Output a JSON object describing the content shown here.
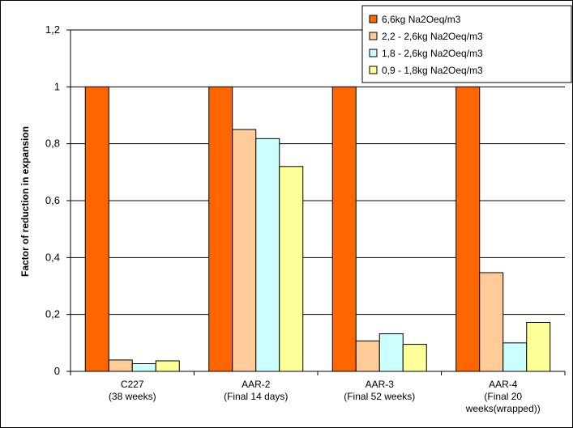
{
  "chart_data": {
    "type": "bar",
    "ylabel": "Factor of reduction in expansion",
    "xlabel": "",
    "ylim": [
      0,
      1.2
    ],
    "yticks": [
      "0",
      "0,2",
      "0,4",
      "0,6",
      "0,8",
      "1",
      "1,2"
    ],
    "ytick_values": [
      0,
      0.2,
      0.4,
      0.6,
      0.8,
      1.0,
      1.2
    ],
    "grid": "horizontal",
    "legend_position": "top-right",
    "categories": [
      [
        "C227",
        "(38 weeks)"
      ],
      [
        "AAR-2",
        "(Final 14 days)"
      ],
      [
        "AAR-3",
        "(Final 52 weeks)"
      ],
      [
        "AAR-4",
        "(Final 20",
        "weeks(wrapped))"
      ]
    ],
    "series": [
      {
        "name": "6,6kg Na2Oeq/m3",
        "color": "#FF6600",
        "values": [
          1.0,
          1.0,
          1.0,
          1.0
        ]
      },
      {
        "name": "2,2 - 2,6kg Na2Oeq/m3",
        "color": "#FFCC99",
        "values": [
          0.04,
          0.85,
          0.107,
          0.347
        ]
      },
      {
        "name": "1,8 - 2,6kg Na2Oeq/m3",
        "color": "#CCFFFF",
        "values": [
          0.027,
          0.818,
          0.132,
          0.1
        ]
      },
      {
        "name": "0,9 - 1,8kg Na2Oeq/m3",
        "color": "#FFFF99",
        "values": [
          0.037,
          0.72,
          0.095,
          0.172
        ]
      }
    ]
  }
}
